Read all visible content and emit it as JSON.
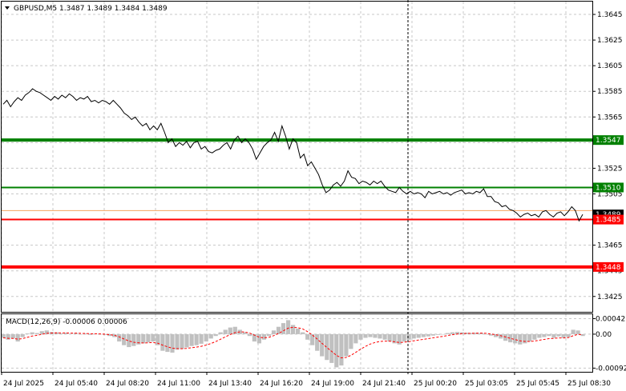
{
  "chart_data": {
    "type": "line",
    "symbol_header": "GBPUSD,M5  1.3487 1.3489 1.3484 1.3489",
    "price_axis": {
      "ticks": [
        "1.3645",
        "1.3625",
        "1.3605",
        "1.3585",
        "1.3565",
        "1.3525",
        "1.3505",
        "1.3465",
        "1.3445",
        "1.3425"
      ],
      "tick_values": [
        1.3645,
        1.3625,
        1.3605,
        1.3585,
        1.3565,
        1.3525,
        1.3505,
        1.3465,
        1.3445,
        1.3425
      ],
      "range": [
        1.3413,
        1.3655
      ]
    },
    "time_axis": {
      "labels": [
        "24 Jul 2025",
        "24 Jul 05:40",
        "24 Jul 08:20",
        "24 Jul 11:00",
        "24 Jul 13:40",
        "24 Jul 16:20",
        "24 Jul 19:00",
        "24 Jul 21:40",
        "25 Jul 00:20",
        "25 Jul 03:05",
        "25 Jul 05:45",
        "25 Jul 08:30"
      ]
    },
    "levels": [
      {
        "value": 1.3547,
        "label": "1.3547",
        "color": "#008000",
        "weight": "thick"
      },
      {
        "value": 1.351,
        "label": "1.3510",
        "color": "#008000",
        "weight": "thin"
      },
      {
        "value": 1.3485,
        "label": "1.3485",
        "color": "#ff0000",
        "weight": "thin"
      },
      {
        "value": 1.3448,
        "label": "1.3448",
        "color": "#ff0000",
        "weight": "thick"
      }
    ],
    "current_price": {
      "value": 1.3489,
      "label": "1.3489",
      "color": "#000000"
    },
    "ask_line": {
      "value": 1.3492,
      "color": "#f4a460"
    },
    "series": [
      {
        "values": [
          1.3575,
          1.3578,
          1.3573,
          1.3577,
          1.358,
          1.3578,
          1.3582,
          1.3584,
          1.3587,
          1.3585,
          1.3584,
          1.3582,
          1.358,
          1.3578,
          1.3581,
          1.3579,
          1.3582,
          1.358,
          1.3583,
          1.3581,
          1.3578,
          1.358,
          1.3579,
          1.3581,
          1.3577,
          1.3578,
          1.3576,
          1.3578,
          1.3577,
          1.3575,
          1.3578,
          1.3575,
          1.3572,
          1.3568,
          1.3566,
          1.3563,
          1.3565,
          1.3561,
          1.3558,
          1.356,
          1.3555,
          1.3558,
          1.3555,
          1.356,
          1.3553,
          1.3545,
          1.3548,
          1.3542,
          1.3545,
          1.3543,
          1.3546,
          1.3541,
          1.3545,
          1.3546,
          1.354,
          1.3542,
          1.3538,
          1.3537,
          1.3539,
          1.354,
          1.3543,
          1.3545,
          1.354,
          1.3547,
          1.355,
          1.3545,
          1.3548,
          1.3545,
          1.354,
          1.3532,
          1.3537,
          1.3542,
          1.3545,
          1.3547,
          1.3553,
          1.3546,
          1.3558,
          1.355,
          1.354,
          1.3548,
          1.3545,
          1.3533,
          1.3536,
          1.3527,
          1.353,
          1.3525,
          1.352,
          1.3512,
          1.3506,
          1.3508,
          1.3512,
          1.3514,
          1.3511,
          1.3515,
          1.3523,
          1.3518,
          1.3517,
          1.3513,
          1.3515,
          1.3514,
          1.3512,
          1.3515,
          1.3513,
          1.3515,
          1.3511,
          1.3508,
          1.3507,
          1.3506,
          1.351,
          1.3507,
          1.3505,
          1.3507,
          1.3505,
          1.3506,
          1.3505,
          1.3502,
          1.3507,
          1.3505,
          1.3506,
          1.3507,
          1.3505,
          1.3506,
          1.3504,
          1.3506,
          1.3507,
          1.3508,
          1.3505,
          1.3506,
          1.3505,
          1.3507,
          1.3506,
          1.3509,
          1.3503,
          1.3503,
          1.3499,
          1.3498,
          1.3495,
          1.3496,
          1.3493,
          1.3492,
          1.349,
          1.3487,
          1.3489,
          1.349,
          1.3488,
          1.3489,
          1.3487,
          1.3491,
          1.3492,
          1.3489,
          1.3487,
          1.349,
          1.3491,
          1.3488,
          1.3491,
          1.3495,
          1.3492,
          1.3484,
          1.3489
        ]
      }
    ],
    "macd": {
      "label": "MACD(12,26,9) -0.00006 0.00006",
      "ticks": [
        "0.00042",
        "0.00",
        "-0.00092"
      ],
      "tick_values": [
        0.00042,
        0.0,
        -0.00092
      ],
      "range": [
        -0.00102,
        0.00054
      ],
      "histogram_color": "#c0c0c0",
      "signal_color": "#ff0000",
      "histogram": [
        -0.0001,
        -0.00015,
        -0.00012,
        -0.0002,
        -8e-05,
        2e-05,
        5e-05,
        3e-05,
        8e-05,
        0.0001,
        6e-05,
        5e-05,
        2e-05,
        4e-05,
        1e-05,
        3e-05,
        0.0,
        2e-05,
        -2e-05,
        1e-05,
        0.0,
        -2e-05,
        -5e-05,
        -8e-05,
        -0.0002,
        -0.0003,
        -0.00035,
        -0.00032,
        -0.00028,
        -0.00025,
        -0.00022,
        -0.0002,
        -0.0003,
        -0.00045,
        -0.00048,
        -0.0005,
        -0.00042,
        -0.0004,
        -0.00036,
        -0.00032,
        -0.0003,
        -0.00026,
        -0.0002,
        -0.00012,
        -5e-05,
        5e-05,
        0.00012,
        0.00018,
        0.0002,
        0.00012,
        5e-05,
        -5e-05,
        -0.0002,
        -0.00025,
        -0.00015,
        -5e-05,
        0.0001,
        0.0002,
        0.0003,
        0.00038,
        0.00025,
        0.00015,
        5e-05,
        -0.00015,
        -0.0003,
        -0.00045,
        -0.0006,
        -0.0007,
        -0.00078,
        -0.0009,
        -0.00085,
        -0.0006,
        -0.0004,
        -0.00025,
        -0.00015,
        -0.0001,
        -8e-05,
        -0.0001,
        -0.00012,
        -0.00015,
        -0.0002,
        -0.00025,
        -0.00028,
        -0.0002,
        -0.00015,
        -0.00012,
        -0.0001,
        -8e-05,
        -6e-05,
        -4e-05,
        -2e-05,
        0.0,
        3e-05,
        5e-05,
        6e-05,
        5e-05,
        4e-05,
        3e-05,
        4e-05,
        3e-05,
        0.0,
        -4e-05,
        -8e-05,
        -0.00012,
        -0.00018,
        -0.00022,
        -0.00025,
        -0.00028,
        -0.00025,
        -0.0002,
        -0.00015,
        -0.0001,
        -8e-05,
        -5e-05,
        -0.0001,
        -6e-05,
        -0.0001,
        -8e-05,
        0.00012,
        0.0001,
        -5e-05
      ]
    }
  }
}
